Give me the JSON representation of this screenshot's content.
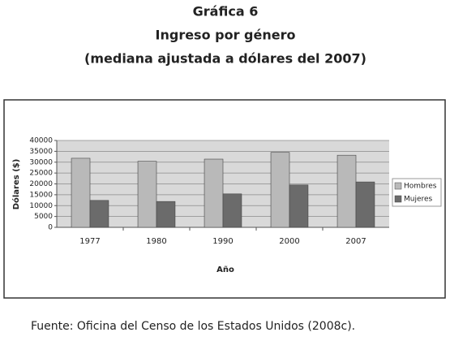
{
  "chart_data": {
    "type": "bar",
    "title": "Gráfica 6",
    "subtitle": "Ingreso por género",
    "caption": "(mediana ajustada a dólares del 2007)",
    "x_label": "Año",
    "y_label": "Dólares ($)",
    "categories": [
      "1977",
      "1980",
      "1990",
      "2000",
      "2007"
    ],
    "series": [
      {
        "name": "Hombres",
        "color": "#b9b9b9",
        "values": [
          31800,
          30400,
          31400,
          34500,
          33200
        ]
      },
      {
        "name": "Mujeres",
        "color": "#6b6b6b",
        "values": [
          12400,
          11900,
          15400,
          19500,
          20900
        ]
      }
    ],
    "ylim": [
      0,
      40000
    ],
    "yticks": [
      0,
      5000,
      10000,
      15000,
      20000,
      25000,
      30000,
      35000,
      40000
    ],
    "grid": true,
    "legend": "right",
    "source": "Fuente: Oficina del Censo de los Estados Unidos (2008c)."
  }
}
